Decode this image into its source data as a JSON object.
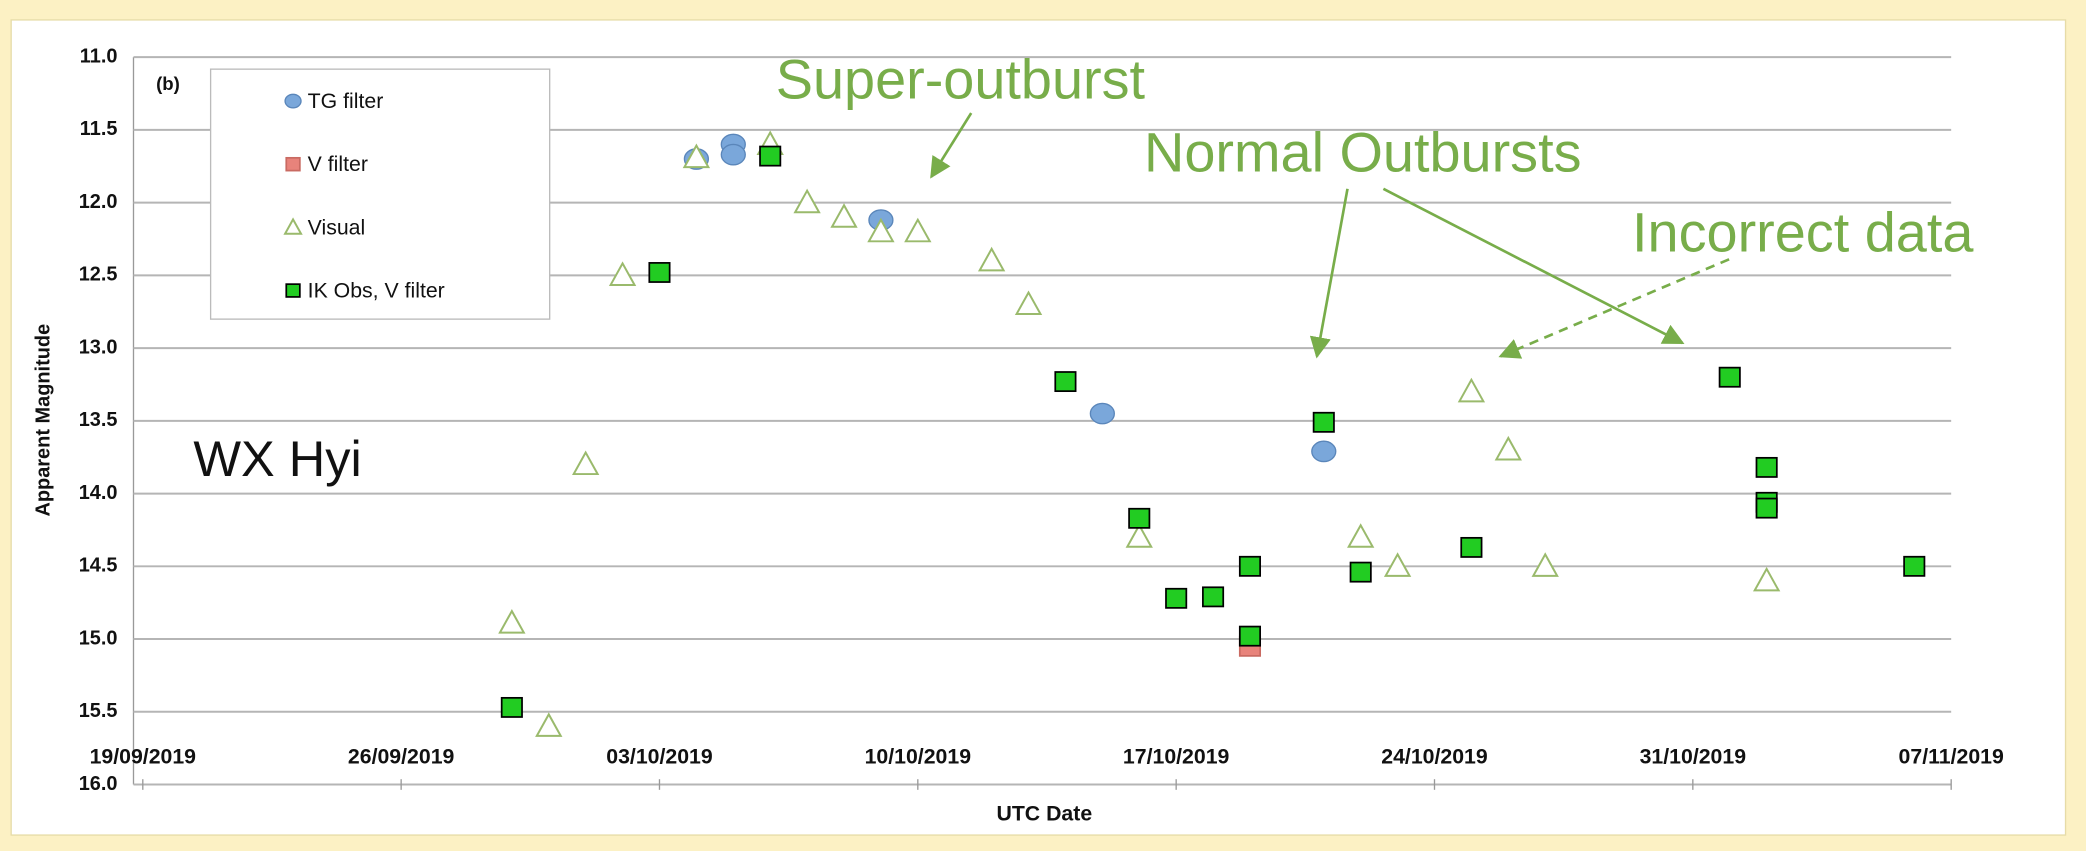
{
  "chart_data": {
    "type": "scatter",
    "x_label": "UTC Date",
    "y_label": "Apparent Magnitude",
    "annotations": [
      "(b)",
      "WX Hyi",
      "Super-outburst",
      "Normal Outbursts",
      "Incorrect data"
    ],
    "xlim": [
      "19/09/2019",
      "07/11/2019"
    ],
    "xticks": [
      "19/09/2019",
      "26/09/2019",
      "03/10/2019",
      "10/10/2019",
      "17/10/2019",
      "24/10/2019",
      "31/10/2019",
      "07/11/2019"
    ],
    "ylim": [
      11,
      16
    ],
    "y_inverted": true,
    "yticks": [
      {
        "value": 11,
        "label": "11.0"
      },
      11.5,
      {
        "value": 12,
        "label": "12.0"
      },
      12.5,
      {
        "value": 13,
        "label": "13.0"
      },
      13.5,
      {
        "value": 14,
        "label": "14.0"
      },
      14.5,
      {
        "value": 15,
        "label": "15.0"
      },
      15.5,
      {
        "value": 16,
        "label": "16.0"
      }
    ],
    "grid": true,
    "legend": "upper left",
    "series": [
      {
        "name": "TG filter",
        "color": "#7aa7da",
        "marker": "circle",
        "x": [
          "04/10/2019",
          "05/10/2019",
          "05/10/2019",
          "09/10/2019",
          "15/10/2019",
          "21/10/2019"
        ],
        "values": [
          11.7,
          11.6,
          11.67,
          12.12,
          13.45,
          13.71
        ]
      },
      {
        "name": "V filter",
        "color": "#e8837b",
        "marker": "square",
        "x": [
          "19/10/2019"
        ],
        "values": [
          15.05
        ]
      },
      {
        "name": "Visual",
        "color": "#9aba6c",
        "marker": "triangle",
        "x": [
          "29/09/2019",
          "30/09/2019",
          "01/10/2019",
          "02/10/2019",
          "04/10/2019",
          "06/10/2019",
          "07/10/2019",
          "08/10/2019",
          "09/10/2019",
          "10/10/2019",
          "12/10/2019",
          "13/10/2019",
          "16/10/2019",
          "22/10/2019",
          "23/10/2019",
          "25/10/2019",
          "26/10/2019",
          "27/10/2019",
          "02/11/2019"
        ],
        "values": [
          14.89,
          15.6,
          13.8,
          12.5,
          11.69,
          11.6,
          12.0,
          12.1,
          12.2,
          12.2,
          12.4,
          12.7,
          14.3,
          14.3,
          14.5,
          13.3,
          13.7,
          14.5,
          14.6
        ]
      },
      {
        "name": "IK Obs, V filter",
        "color": "#22cc22",
        "marker": "square",
        "x": [
          "29/09/2019",
          "03/10/2019",
          "06/10/2019",
          "14/10/2019",
          "16/10/2019",
          "17/10/2019",
          "18/10/2019",
          "19/10/2019",
          "19/10/2019",
          "21/10/2019",
          "22/10/2019",
          "25/10/2019",
          "01/11/2019",
          "02/11/2019",
          "02/11/2019",
          "02/11/2019",
          "06/11/2019"
        ],
        "values": [
          15.47,
          12.48,
          11.68,
          13.23,
          14.17,
          14.72,
          14.71,
          14.5,
          14.98,
          13.51,
          14.54,
          14.37,
          13.2,
          13.82,
          14.06,
          14.1,
          14.5
        ]
      }
    ]
  }
}
